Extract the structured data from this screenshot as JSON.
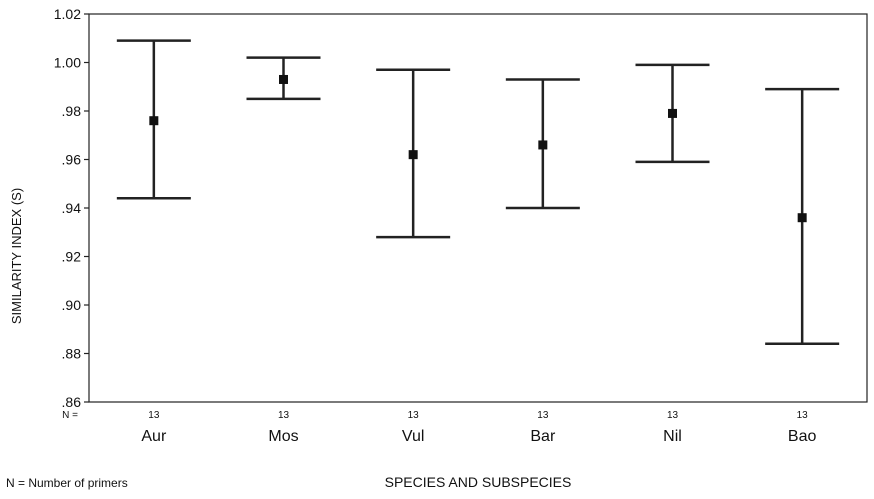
{
  "chart_data": {
    "type": "errorbar",
    "xlabel": "SPECIES AND SUBSPECIES",
    "ylabel": "SIMILARITY INDEX (S)",
    "ylim": [
      0.86,
      1.02
    ],
    "yticks": [
      0.86,
      0.88,
      0.9,
      0.92,
      0.94,
      0.96,
      0.98,
      1.0,
      1.02
    ],
    "ytick_labels": [
      ".86",
      ".88",
      ".90",
      ".92",
      ".94",
      ".96",
      ".98",
      "1.00",
      "1.02"
    ],
    "grid": false,
    "n_label": "N =",
    "footnote": "N = Number of primers",
    "categories": [
      "Aur",
      "Mos",
      "Vul",
      "Bar",
      "Nil",
      "Bao"
    ],
    "n": [
      13,
      13,
      13,
      13,
      13,
      13
    ],
    "means": [
      0.976,
      0.993,
      0.962,
      0.966,
      0.979,
      0.936
    ],
    "lower": [
      0.944,
      0.985,
      0.928,
      0.94,
      0.959,
      0.884
    ],
    "upper": [
      1.009,
      1.002,
      0.997,
      0.993,
      0.999,
      0.989
    ]
  }
}
